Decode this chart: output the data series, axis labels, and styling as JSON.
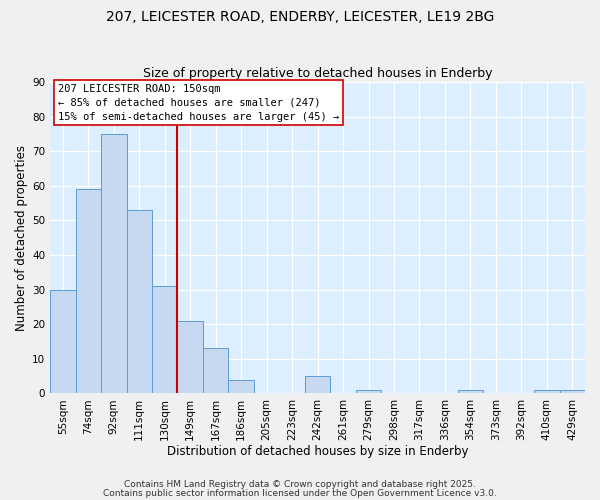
{
  "title": "207, LEICESTER ROAD, ENDERBY, LEICESTER, LE19 2BG",
  "subtitle": "Size of property relative to detached houses in Enderby",
  "xlabel": "Distribution of detached houses by size in Enderby",
  "ylabel": "Number of detached properties",
  "bin_labels": [
    "55sqm",
    "74sqm",
    "92sqm",
    "111sqm",
    "130sqm",
    "149sqm",
    "167sqm",
    "186sqm",
    "205sqm",
    "223sqm",
    "242sqm",
    "261sqm",
    "279sqm",
    "298sqm",
    "317sqm",
    "336sqm",
    "354sqm",
    "373sqm",
    "392sqm",
    "410sqm",
    "429sqm"
  ],
  "bar_heights": [
    30,
    59,
    75,
    53,
    31,
    21,
    13,
    4,
    0,
    0,
    5,
    0,
    1,
    0,
    0,
    0,
    1,
    0,
    0,
    1,
    1
  ],
  "bar_color": "#c6d9f0",
  "bar_edge_color": "#5b9bd5",
  "ylim": [
    0,
    90
  ],
  "yticks": [
    0,
    10,
    20,
    30,
    40,
    50,
    60,
    70,
    80,
    90
  ],
  "vline_index": 5,
  "vline_color": "#cc0000",
  "annotation_title": "207 LEICESTER ROAD: 150sqm",
  "annotation_line1": "← 85% of detached houses are smaller (247)",
  "annotation_line2": "15% of semi-detached houses are larger (45) →",
  "annotation_box_color": "#ffffff",
  "annotation_box_edge_color": "#cc0000",
  "fig_bg_color": "#f0f0f0",
  "plot_bg_color": "#ddeeff",
  "footer1": "Contains HM Land Registry data © Crown copyright and database right 2025.",
  "footer2": "Contains public sector information licensed under the Open Government Licence v3.0.",
  "title_fontsize": 10,
  "subtitle_fontsize": 9,
  "axis_label_fontsize": 8.5,
  "tick_fontsize": 7.5,
  "annotation_fontsize": 7.5,
  "footer_fontsize": 6.5
}
